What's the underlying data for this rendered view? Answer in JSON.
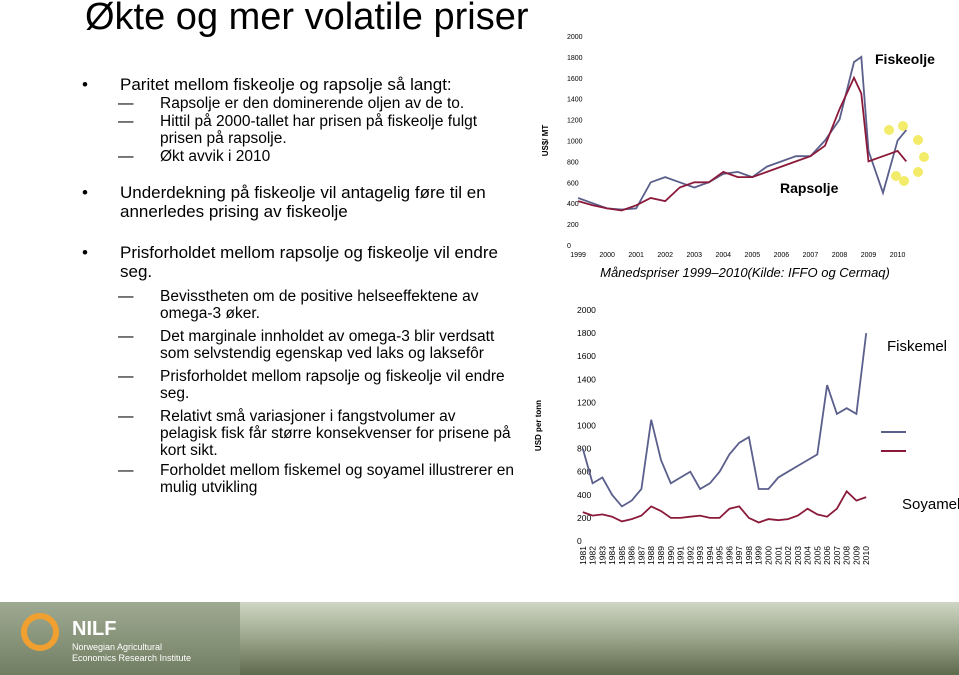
{
  "slide": {
    "title": "Økte og mer volatile priser",
    "bullets": [
      {
        "text": "Paritet mellom fiskeolje og rapsolje så langt:",
        "sub": [
          "Rapsolje er den dominerende oljen av de to.",
          "Hittil på 2000-tallet har prisen på fiskeolje fulgt prisen på rapsolje.",
          "Økt avvik i 2010"
        ]
      },
      {
        "text": "Underdekning på fiskeolje vil antagelig føre til en annerledes prising av fiskeolje",
        "sub": []
      },
      {
        "text": "Prisforholdet mellom rapsolje og fiskeolje vil endre seg.",
        "sub": [
          "Bevisstheten om de positive helseeffektene av omega-3 øker.",
          "Det marginale innholdet av omega-3 blir verdsatt som selvstendig egenskap ved laks og laksefôr",
          "Prisforholdet mellom rapsolje og fiskeolje vil endre seg.",
          "Relativt små variasjoner i fangstvolumer av pelagisk fisk får større konsekvenser for prisene på kort sikt.",
          "Forholdet mellom fiskemel og soyamel illustrerer en mulig utvikling"
        ]
      }
    ]
  },
  "footer": {
    "logo": "NILF",
    "line1": "Norwegian Agricultural",
    "line2": "Economics Research Institute"
  },
  "chart_data": [
    {
      "type": "line",
      "y_label": "US$/ MT",
      "caption": "Månedspriser 1999–2010(Kilde: IFFO og Cermaq)",
      "xlim": [
        1998.55,
        2010.6
      ],
      "xticks": [
        1999,
        2000,
        2001,
        2002,
        2003,
        2004,
        2005,
        2006,
        2007,
        2008,
        2009,
        2010
      ],
      "ylim": [
        0,
        2000
      ],
      "yticks": [
        0,
        200,
        400,
        600,
        800,
        1000,
        1200,
        1400,
        1600,
        1800,
        2000
      ],
      "x": [
        1999,
        1999.5,
        2000,
        2000.5,
        2001,
        2001.5,
        2002,
        2002.5,
        2003,
        2003.5,
        2004,
        2004.5,
        2005,
        2005.5,
        2006,
        2006.5,
        2007,
        2007.5,
        2008,
        2008.5,
        2008.75,
        2009,
        2009.5,
        2010,
        2010.3
      ],
      "series": [
        {
          "name": "Fiskeolje",
          "color": "#5b5f8c",
          "values": [
            450,
            400,
            350,
            340,
            350,
            600,
            650,
            600,
            550,
            600,
            680,
            700,
            650,
            750,
            800,
            850,
            850,
            1000,
            1200,
            1750,
            1800,
            900,
            500,
            1000,
            1100
          ]
        },
        {
          "name": "Rapsolje",
          "color": "#8b1a3a",
          "values": [
            420,
            380,
            350,
            330,
            380,
            450,
            420,
            550,
            600,
            600,
            700,
            650,
            650,
            700,
            750,
            800,
            850,
            950,
            1300,
            1600,
            1450,
            800,
            850,
            900,
            800
          ]
        }
      ]
    },
    {
      "type": "line",
      "y_label": "USD per tonn",
      "xlim": [
        1980.2,
        2010.9
      ],
      "xticks": [
        1981,
        1982,
        1983,
        1984,
        1985,
        1986,
        1987,
        1988,
        1989,
        1990,
        1991,
        1992,
        1993,
        1994,
        1995,
        1996,
        1997,
        1998,
        1999,
        2000,
        2001,
        2002,
        2003,
        2004,
        2005,
        2006,
        2007,
        2008,
        2009,
        2010
      ],
      "ylim": [
        0,
        2000
      ],
      "yticks": [
        0,
        200,
        400,
        600,
        800,
        1000,
        1200,
        1400,
        1600,
        1800,
        2000
      ],
      "x": [
        1981,
        1982,
        1983,
        1984,
        1985,
        1986,
        1987,
        1988,
        1989,
        1990,
        1991,
        1992,
        1993,
        1994,
        1995,
        1996,
        1997,
        1998,
        1999,
        2000,
        2001,
        2002,
        2003,
        2004,
        2005,
        2006,
        2007,
        2008,
        2009,
        2010
      ],
      "series": [
        {
          "name": "Fiskemel",
          "color": "#5b5f8c",
          "values": [
            800,
            500,
            550,
            400,
            300,
            350,
            450,
            1050,
            700,
            500,
            550,
            600,
            450,
            500,
            600,
            750,
            850,
            900,
            450,
            450,
            550,
            600,
            650,
            700,
            750,
            1350,
            1100,
            1150,
            1100,
            1800
          ]
        },
        {
          "name": "Soyamel",
          "color": "#8b1a3a",
          "values": [
            250,
            220,
            230,
            210,
            170,
            190,
            220,
            300,
            260,
            200,
            200,
            210,
            220,
            200,
            200,
            280,
            300,
            200,
            160,
            190,
            180,
            190,
            220,
            280,
            230,
            210,
            280,
            430,
            350,
            380
          ]
        }
      ]
    }
  ]
}
